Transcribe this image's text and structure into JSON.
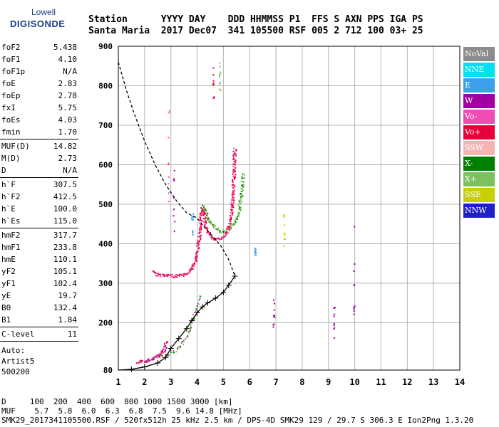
{
  "logo": {
    "line1": "Lowell",
    "line2": "DIGISONDE"
  },
  "header": {
    "labels": "Station      YYYY DAY    DDD HHMMSS P1  FFS S AXN PPS IGA PS",
    "values": "Santa Maria  2017 Dec07  341 105500 RSF 005 2 712 100 03+ 25"
  },
  "params": {
    "group1": [
      {
        "name": "foF2",
        "value": "5.438"
      },
      {
        "name": "foF1",
        "value": "4.10"
      },
      {
        "name": "foF1p",
        "value": "N/A"
      },
      {
        "name": "foE",
        "value": "2.83"
      },
      {
        "name": "foEp",
        "value": "2.78"
      },
      {
        "name": "fxI",
        "value": "5.75"
      },
      {
        "name": "foEs",
        "value": "4.03"
      },
      {
        "name": "fmin",
        "value": "1.70"
      }
    ],
    "group2": [
      {
        "name": "MUF(D)",
        "value": "14.82"
      },
      {
        "name": "M(D)",
        "value": "2.73"
      },
      {
        "name": "D",
        "value": "N/A"
      }
    ],
    "group3": [
      {
        "name": "h`F",
        "value": "307.5"
      },
      {
        "name": "h`F2",
        "value": "412.5"
      },
      {
        "name": "h`E",
        "value": "100.0"
      },
      {
        "name": "h`Es",
        "value": "115.0"
      }
    ],
    "group4": [
      {
        "name": "hmF2",
        "value": "317.7"
      },
      {
        "name": "hmF1",
        "value": "233.8"
      },
      {
        "name": "hmE",
        "value": "110.1"
      },
      {
        "name": "yF2",
        "value": "105.1"
      },
      {
        "name": "yF1",
        "value": "102.4"
      },
      {
        "name": "yE",
        "value": "19.7"
      },
      {
        "name": "B0",
        "value": "132.4"
      },
      {
        "name": "B1",
        "value": "1.84"
      }
    ],
    "group5": [
      {
        "name": "C-level",
        "value": "11"
      }
    ],
    "auto": [
      "Auto:",
      "Artist5",
      "500200"
    ]
  },
  "legend": [
    {
      "label": "NoVal",
      "color": "#8c8c8c"
    },
    {
      "label": "NNE",
      "color": "#00e0f0"
    },
    {
      "label": "E",
      "color": "#3ca0f0"
    },
    {
      "label": "W",
      "color": "#a000a0"
    },
    {
      "label": "Vo-",
      "color": "#f04cb4"
    },
    {
      "label": "Vo+",
      "color": "#e8003c"
    },
    {
      "label": "SSW",
      "color": "#f4b4b4"
    },
    {
      "label": "X-",
      "color": "#008000"
    },
    {
      "label": "X+",
      "color": "#7cc060"
    },
    {
      "label": "SSE",
      "color": "#c8d000"
    },
    {
      "label": "NNW",
      "color": "#2020c8"
    }
  ],
  "footer": {
    "line1": "D     100  200  400  600  800 1000 1500 3000 [km]",
    "line2": "MUF    5.7  5.8  6.0  6.3  6.8  7.5  9.6 14.8 [MHz]",
    "line3": "SMK29_2017341105500.RSF / 520fx512h 25 kHz 2.5 km / DPS-4D SMK29 129 / 29.7 S 306.3 E Ion2Png 1.3.20"
  },
  "chart_data": {
    "type": "scatter",
    "xlabel": "",
    "ylabel": "",
    "xlim": [
      1,
      14
    ],
    "ylim": [
      80,
      900
    ],
    "xticks": [
      1,
      2,
      3,
      4,
      5,
      6,
      7,
      8,
      9,
      10,
      11,
      12,
      13,
      14
    ],
    "yticks": [
      80,
      200,
      300,
      400,
      500,
      600,
      700,
      800,
      900
    ],
    "grid": true,
    "series": [
      {
        "kind": "edp_profile",
        "x": [
          1.0,
          1.5,
          2.0,
          2.5,
          2.8,
          3.0,
          3.3,
          3.6,
          3.8,
          4.0,
          4.2,
          4.4,
          4.7,
          5.0,
          5.2,
          5.44
        ],
        "y": [
          80,
          82,
          88,
          98,
          112,
          135,
          160,
          185,
          205,
          225,
          240,
          250,
          262,
          277,
          295,
          318
        ]
      },
      {
        "kind": "edp_extrapolation",
        "x": [
          1.0,
          1.3,
          1.6,
          2.0,
          2.4,
          2.8,
          3.2,
          3.6,
          4.0,
          4.3,
          4.6,
          4.9,
          5.2,
          5.44
        ],
        "y": [
          860,
          790,
          730,
          660,
          600,
          550,
          510,
          478,
          465,
          440,
          418,
          395,
          360,
          318
        ]
      },
      {
        "kind": "trace_o_F2",
        "x": [
          2.35,
          2.45,
          2.8,
          3.2,
          3.6,
          3.85,
          4.0,
          4.1,
          4.15,
          4.2,
          4.25,
          4.3,
          4.35,
          4.45,
          4.6,
          4.8,
          5.0,
          5.15,
          5.28,
          5.35,
          5.4,
          5.44
        ],
        "y": [
          330,
          322,
          318,
          318,
          322,
          340,
          372,
          420,
          470,
          488,
          480,
          458,
          440,
          425,
          414,
          411,
          416,
          430,
          455,
          500,
          560,
          640
        ]
      },
      {
        "kind": "trace_x_F2",
        "x": [
          4.25,
          4.35,
          4.5,
          4.7,
          4.9,
          5.1,
          5.3,
          5.5,
          5.6,
          5.7,
          5.75
        ],
        "y": [
          495,
          475,
          455,
          440,
          432,
          430,
          438,
          458,
          485,
          525,
          575
        ]
      },
      {
        "kind": "trace_o_F1_Es",
        "x": [
          2.4,
          2.6,
          2.8,
          3.0,
          3.2,
          3.4,
          3.6,
          3.8,
          4.0,
          4.1
        ],
        "y": [
          112,
          115,
          118,
          122,
          128,
          140,
          165,
          200,
          240,
          268
        ]
      },
      {
        "kind": "trace_E",
        "x": [
          1.75,
          1.9,
          2.1,
          2.3,
          2.5,
          2.65,
          2.75,
          2.83
        ],
        "y": [
          100,
          101,
          104,
          108,
          114,
          122,
          132,
          148
        ]
      }
    ],
    "muf_table": {
      "D_km": [
        100,
        200,
        400,
        600,
        800,
        1000,
        1500,
        3000
      ],
      "MUF_MHz": [
        5.7,
        5.8,
        6.0,
        6.3,
        6.8,
        7.5,
        9.6,
        14.8
      ]
    }
  }
}
